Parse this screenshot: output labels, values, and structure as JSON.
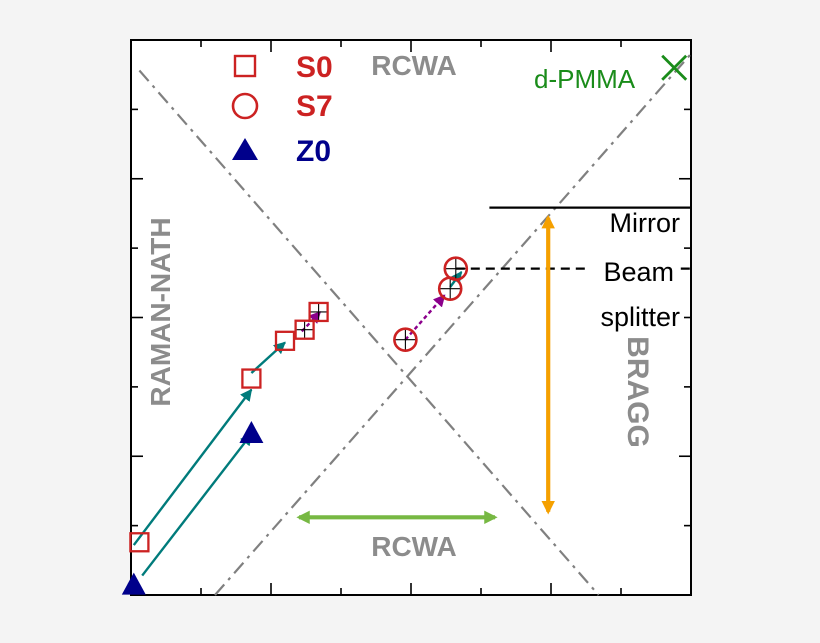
{
  "chart_data": {
    "type": "scatter",
    "title": "",
    "xlabel": "",
    "ylabel": "",
    "xlim": [
      0,
      10
    ],
    "ylim": [
      0,
      10
    ],
    "grid": false,
    "legend": {
      "position": "top-left",
      "entries": [
        {
          "label": "S0",
          "marker": "square",
          "color": "#cc2222"
        },
        {
          "label": "S7",
          "marker": "circle",
          "color": "#cc2222"
        },
        {
          "label": "Z0",
          "marker": "triangle",
          "color": "#00008b"
        }
      ]
    },
    "region_labels": {
      "rcwa_top": "RCWA",
      "rcwa_bottom": "RCWA",
      "raman_nath": "RAMAN-NATH",
      "bragg": "BRAGG"
    },
    "annotations": {
      "dpmma": "d-PMMA",
      "mirror": "Mirror",
      "beam": "Beam",
      "splitter": "splitter"
    },
    "colors": {
      "s0_s7": "#cc2222",
      "z0": "#00008b",
      "dpmma": "#1a8c1a",
      "teal_arrow": "#007b7b",
      "purple_arrow": "#8b008b",
      "orange_arrow": "#f5a000",
      "green_arrow": "#77b843",
      "boundary": "#808080"
    },
    "boundaries": [
      {
        "name": "raman-nath-boundary",
        "x": [
          0.15,
          8.35
        ],
        "y": [
          9.45,
          0
        ]
      },
      {
        "name": "bragg-boundary",
        "x": [
          1.5,
          10
        ],
        "y": [
          0,
          9.75
        ]
      }
    ],
    "series": [
      {
        "name": "S0",
        "marker": "square",
        "x": [
          0.15,
          2.15,
          2.75,
          3.1,
          3.35
        ],
        "y": [
          0.95,
          3.9,
          4.58,
          4.78,
          5.1
        ]
      },
      {
        "name": "S7",
        "marker": "circle",
        "x": [
          4.9,
          5.7,
          5.8
        ],
        "y": [
          4.6,
          5.52,
          5.88
        ]
      },
      {
        "name": "Z0",
        "marker": "triangle",
        "x": [
          0.05,
          2.15
        ],
        "y": [
          0.17,
          2.9
        ]
      }
    ],
    "dpmma_point": {
      "x": 9.7,
      "y": 9.5
    },
    "reference_lines": [
      {
        "style": "solid",
        "y": 6.98,
        "x": [
          6.4,
          10
        ]
      },
      {
        "style": "dashed",
        "y": 5.88,
        "x": [
          5.8,
          10
        ]
      }
    ],
    "arrows": [
      {
        "color": "teal",
        "from": [
          0.05,
          0.9
        ],
        "to": [
          2.15,
          3.7
        ],
        "heads": "end"
      },
      {
        "color": "teal",
        "from": [
          0.2,
          0.35
        ],
        "to": [
          2.15,
          2.9
        ],
        "heads": "end"
      },
      {
        "color": "teal",
        "from": [
          2.15,
          4.0
        ],
        "to": [
          2.75,
          4.55
        ],
        "heads": "end"
      },
      {
        "color": "teal",
        "from": [
          5.7,
          5.55
        ],
        "to": [
          5.9,
          5.82
        ],
        "heads": "end"
      },
      {
        "color": "purple",
        "from": [
          4.9,
          4.6
        ],
        "to": [
          5.6,
          5.4
        ],
        "heads": "end"
      },
      {
        "color": "purple",
        "from": [
          3.05,
          4.75
        ],
        "to": [
          3.38,
          5.1
        ],
        "heads": "end"
      },
      {
        "color": "orange",
        "from": [
          7.45,
          6.8
        ],
        "to": [
          7.45,
          1.5
        ],
        "heads": "both"
      },
      {
        "color": "green",
        "from": [
          3.0,
          1.4
        ],
        "to": [
          6.5,
          1.4
        ],
        "heads": "both"
      }
    ]
  }
}
